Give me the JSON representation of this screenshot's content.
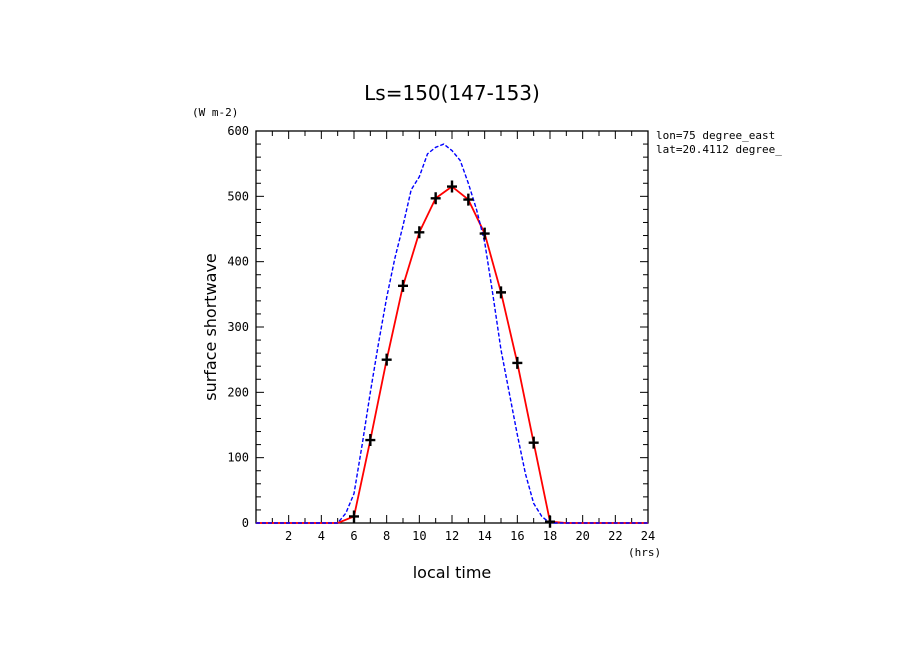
{
  "chart_data": {
    "type": "line",
    "title": "Ls=150(147-153)",
    "xlabel": "local time",
    "ylabel": "surface shortwave",
    "x_unit": "(hrs)",
    "y_unit": "(W m-2)",
    "annotations": [
      "lon=75 degree_east",
      "lat=20.4112 degree_"
    ],
    "xlim": [
      0,
      24
    ],
    "ylim": [
      0,
      600
    ],
    "x_ticks": [
      2,
      4,
      6,
      8,
      10,
      12,
      14,
      16,
      18,
      20,
      22,
      24
    ],
    "y_ticks": [
      0,
      100,
      200,
      300,
      400,
      500,
      600
    ],
    "grid": false,
    "series": [
      {
        "color": "#ff0000",
        "style": "solid",
        "x": [
          0,
          1,
          2,
          3,
          4,
          5,
          6,
          7,
          8,
          9,
          10,
          11,
          12,
          13,
          14,
          15,
          16,
          17,
          18,
          19,
          20,
          21,
          22,
          23,
          24
        ],
        "values": [
          0,
          0,
          0,
          0,
          0,
          0,
          10,
          127,
          250,
          363,
          445,
          497,
          515,
          495,
          443,
          353,
          245,
          123,
          2,
          0,
          0,
          0,
          0,
          0,
          0
        ]
      },
      {
        "color": "#0000ff",
        "style": "dashed",
        "x": [
          0,
          1,
          2,
          3,
          4,
          5,
          5.5,
          6,
          6.5,
          7,
          7.5,
          8,
          8.5,
          9,
          9.5,
          10,
          10.5,
          11,
          11.5,
          12,
          12.5,
          13,
          13.5,
          14,
          14.5,
          15,
          15.5,
          16,
          16.5,
          17,
          17.5,
          18,
          18.5,
          19,
          20,
          21,
          22,
          23,
          24
        ],
        "values": [
          0,
          0,
          0,
          0,
          0,
          0,
          15,
          45,
          120,
          200,
          275,
          345,
          405,
          455,
          510,
          530,
          565,
          575,
          580,
          570,
          555,
          520,
          480,
          430,
          350,
          265,
          200,
          135,
          75,
          30,
          10,
          0,
          0,
          0,
          0,
          0,
          0,
          0,
          0
        ]
      },
      {
        "color": "#000000",
        "style": "markers",
        "marker": "plus",
        "x": [
          6,
          7,
          8,
          9,
          10,
          11,
          12,
          13,
          14,
          15,
          16,
          17,
          18
        ],
        "values": [
          10,
          127,
          250,
          363,
          445,
          497,
          515,
          495,
          443,
          353,
          245,
          123,
          2
        ]
      }
    ]
  }
}
